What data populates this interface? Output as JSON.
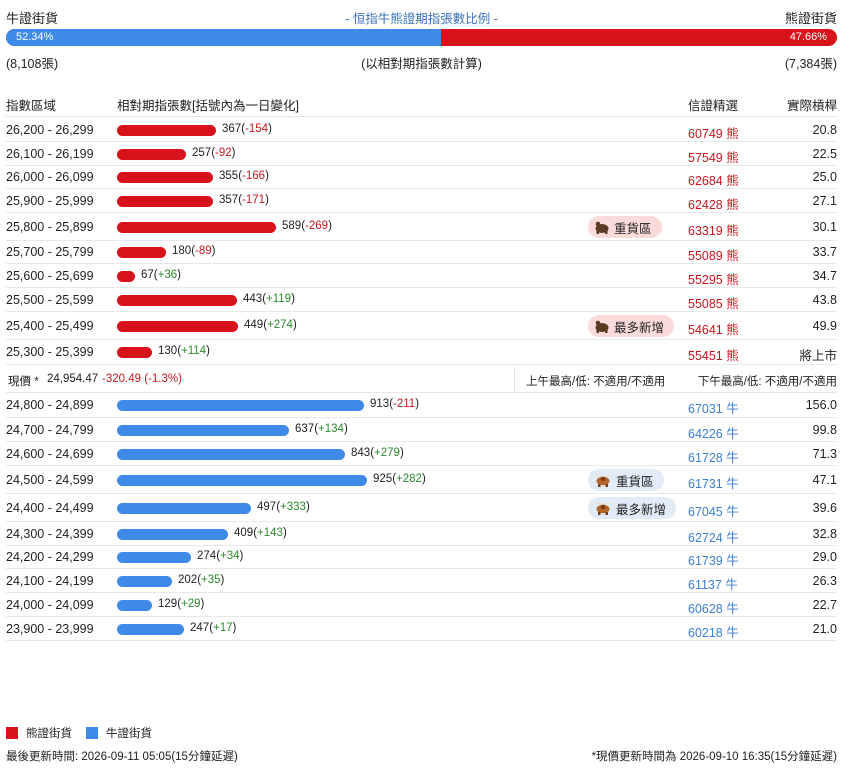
{
  "header": {
    "bull_label": "牛證街貨",
    "title": "- 恒指牛熊證期指張數比例 -",
    "bear_label": "熊證街貨"
  },
  "ratio": {
    "bull_pct": "52.34%",
    "bear_pct": "47.66%",
    "bull_fraction": 0.5234,
    "bull_count": "(8,108張)",
    "note": "(以相對期指張數計算)",
    "bear_count": "(7,384張)"
  },
  "columns": {
    "range": "指數區域",
    "contracts": "相對期指張數[括號內為一日變化]",
    "pick": "信證精選",
    "leverage": "實際槓桿"
  },
  "colors": {
    "bear": "#d7121a",
    "bull": "#3d8ae8"
  },
  "bear_rows": [
    {
      "range": "26,200 - 26,299",
      "count": "367",
      "change": "-154",
      "code": "60749",
      "type": "熊",
      "leverage": "20.8"
    },
    {
      "range": "26,100 - 26,199",
      "count": "257",
      "change": "-92",
      "code": "57549",
      "type": "熊",
      "leverage": "22.5"
    },
    {
      "range": "26,000 - 26,099",
      "count": "355",
      "change": "-166",
      "code": "62684",
      "type": "熊",
      "leverage": "25.0"
    },
    {
      "range": "25,900 - 25,999",
      "count": "357",
      "change": "-171",
      "code": "62428",
      "type": "熊",
      "leverage": "27.1"
    },
    {
      "range": "25,800 - 25,899",
      "count": "589",
      "change": "-269",
      "code": "63319",
      "type": "熊",
      "leverage": "30.1",
      "tag": "重貨區"
    },
    {
      "range": "25,700 - 25,799",
      "count": "180",
      "change": "-89",
      "code": "55089",
      "type": "熊",
      "leverage": "33.7"
    },
    {
      "range": "25,600 - 25,699",
      "count": "67",
      "change": "+36",
      "code": "55295",
      "type": "熊",
      "leverage": "34.7"
    },
    {
      "range": "25,500 - 25,599",
      "count": "443",
      "change": "+119",
      "code": "55085",
      "type": "熊",
      "leverage": "43.8"
    },
    {
      "range": "25,400 - 25,499",
      "count": "449",
      "change": "+274",
      "code": "54641",
      "type": "熊",
      "leverage": "49.9",
      "tag": "最多新增"
    },
    {
      "range": "25,300 - 25,399",
      "count": "130",
      "change": "+114",
      "code": "55451",
      "type": "熊",
      "leverage": "將上市"
    }
  ],
  "price": {
    "label": "現價 *",
    "value": "24,954.47",
    "change": "-320.49 (-1.3%)",
    "am": "上午最高/低: 不適用/不適用",
    "pm": "下午最高/低: 不適用/不適用"
  },
  "bull_rows": [
    {
      "range": "24,800 - 24,899",
      "count": "913",
      "change": "-211",
      "code": "67031",
      "type": "牛",
      "leverage": "156.0"
    },
    {
      "range": "24,700 - 24,799",
      "count": "637",
      "change": "+134",
      "code": "64226",
      "type": "牛",
      "leverage": "99.8"
    },
    {
      "range": "24,600 - 24,699",
      "count": "843",
      "change": "+279",
      "code": "61728",
      "type": "牛",
      "leverage": "71.3"
    },
    {
      "range": "24,500 - 24,599",
      "count": "925",
      "change": "+282",
      "code": "61731",
      "type": "牛",
      "leverage": "47.1",
      "tag": "重貨區"
    },
    {
      "range": "24,400 - 24,499",
      "count": "497",
      "change": "+333",
      "code": "67045",
      "type": "牛",
      "leverage": "39.6",
      "tag": "最多新增"
    },
    {
      "range": "24,300 - 24,399",
      "count": "409",
      "change": "+143",
      "code": "62724",
      "type": "牛",
      "leverage": "32.8"
    },
    {
      "range": "24,200 - 24,299",
      "count": "274",
      "change": "+34",
      "code": "61739",
      "type": "牛",
      "leverage": "29.0"
    },
    {
      "range": "24,100 - 24,199",
      "count": "202",
      "change": "+35",
      "code": "61137",
      "type": "牛",
      "leverage": "26.3"
    },
    {
      "range": "24,000 - 24,099",
      "count": "129",
      "change": "+29",
      "code": "60628",
      "type": "牛",
      "leverage": "22.7"
    },
    {
      "range": "23,900 - 23,999",
      "count": "247",
      "change": "+17",
      "code": "60218",
      "type": "牛",
      "leverage": "21.0"
    }
  ],
  "legend": {
    "bear": "熊證街貨",
    "bull": "牛證街貨"
  },
  "footer": {
    "updated": "最後更新時間: 2026-09-11 05:05(15分鐘延遲)",
    "price_updated": "*現價更新時間為 2026-09-10 16:35(15分鐘延遲)"
  }
}
